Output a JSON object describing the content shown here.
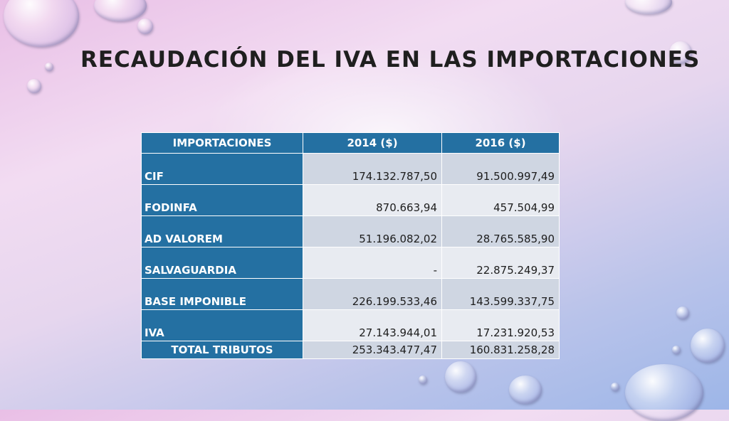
{
  "slide": {
    "title": "RECAUDACIÓN DEL IVA EN LAS IMPORTACIONES"
  },
  "table": {
    "headers": [
      "IMPORTACIONES",
      "2014 ($)",
      "2016 ($)"
    ],
    "rows": [
      {
        "label": "CIF",
        "v2014": "174.132.787,50",
        "v2016": "91.500.997,49"
      },
      {
        "label": "FODINFA",
        "v2014": "870.663,94",
        "v2016": "457.504,99"
      },
      {
        "label": "AD VALOREM",
        "v2014": "51.196.082,02",
        "v2016": "28.765.585,90"
      },
      {
        "label": "SALVAGUARDIA",
        "v2014": "-",
        "v2016": "22.875.249,37"
      },
      {
        "label": "BASE IMPONIBLE",
        "v2014": "226.199.533,46",
        "v2016": "143.599.337,75"
      },
      {
        "label": "IVA",
        "v2014": "27.143.944,01",
        "v2016": "17.231.920,53"
      }
    ],
    "total": {
      "label": "TOTAL TRIBUTOS",
      "v2014": "253.343.477,47",
      "v2016": "160.831.258,28"
    }
  },
  "colors": {
    "header_blue": "#2470a2",
    "row_light": "#e8ebf1",
    "row_dark": "#cfd6e2"
  }
}
